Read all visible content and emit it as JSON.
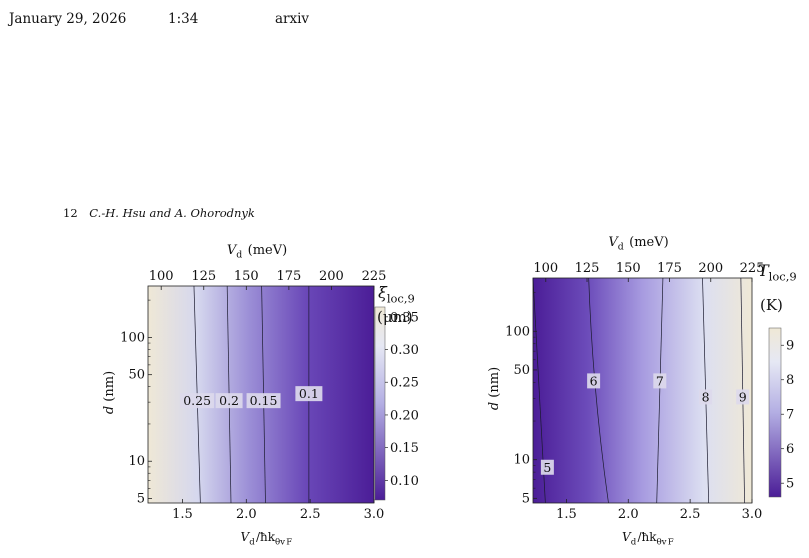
{
  "page_header": {
    "date": "January 29, 2026",
    "time": "1:34",
    "label": "arxiv"
  },
  "running_head": {
    "page_number": "12",
    "authors": "C.-H. Hsu and A. Ohorodnyk"
  },
  "chart_data": [
    {
      "type": "heatmap",
      "top_axis": {
        "label": "V_d (meV)",
        "ticks": [
          "100",
          "125",
          "150",
          "175",
          "200",
          "225"
        ],
        "values": [
          100,
          125,
          150,
          175,
          200,
          225
        ]
      },
      "bottom_axis": {
        "label": "V_d/ħk_θv_F",
        "ticks": [
          "1.5",
          "2.0",
          "2.5",
          "3.0"
        ],
        "values": [
          1.5,
          2.0,
          2.5,
          3.0
        ]
      },
      "y_axis": {
        "label": "d (nm)",
        "scale": "log",
        "ticks": [
          "5",
          "10",
          "50",
          "100"
        ],
        "values": [
          5,
          10,
          50,
          100
        ],
        "range": [
          4.6,
          260
        ]
      },
      "x_range": [
        1.23,
        3.0
      ],
      "colorbar": {
        "title": "ξ_loc,9",
        "unit": "(μm)",
        "ticks": [
          "0.35",
          "0.30",
          "0.25",
          "0.20",
          "0.15",
          "0.10"
        ],
        "values": [
          0.35,
          0.3,
          0.25,
          0.2,
          0.15,
          0.1
        ],
        "range": [
          0.07,
          0.365
        ],
        "colors": [
          "#4b1d97",
          "#ffffff",
          "#efe8d6"
        ]
      },
      "contours": [
        {
          "label": "0.25",
          "x_bottom": 1.64,
          "x_top": 1.59
        },
        {
          "label": "0.2",
          "x_bottom": 1.88,
          "x_top": 1.85
        },
        {
          "label": "0.15",
          "x_bottom": 2.15,
          "x_top": 2.12
        },
        {
          "label": "0.1",
          "x_bottom": 2.49,
          "x_top": 2.49
        }
      ],
      "contour_label_d": 30
    },
    {
      "type": "heatmap",
      "top_axis": {
        "label": "V_d (meV)",
        "ticks": [
          "100",
          "125",
          "150",
          "175",
          "200",
          "225"
        ],
        "values": [
          100,
          125,
          150,
          175,
          200,
          225
        ]
      },
      "bottom_axis": {
        "label": "V_d/ħk_θv_F",
        "ticks": [
          "1.5",
          "2.0",
          "2.5",
          "3.0"
        ],
        "values": [
          1.5,
          2.0,
          2.5,
          3.0
        ]
      },
      "y_axis": {
        "label": "d (nm)",
        "scale": "log",
        "ticks": [
          "5",
          "10",
          "50",
          "100"
        ],
        "values": [
          5,
          10,
          50,
          100
        ],
        "range": [
          4.6,
          260
        ]
      },
      "x_range": [
        1.23,
        3.0
      ],
      "colorbar": {
        "title": "T_loc,9",
        "unit": "(K)",
        "ticks": [
          "9",
          "8",
          "7",
          "6",
          "5"
        ],
        "values": [
          9,
          8,
          7,
          6,
          5
        ],
        "range": [
          4.6,
          9.5
        ],
        "colors": [
          "#4b1d97",
          "#ffffff",
          "#efe8d6"
        ]
      },
      "contours": [
        {
          "label": "5",
          "x_bottom": 1.33,
          "x_top": 1.23
        },
        {
          "label": "6",
          "x_bottom": 1.84,
          "x_top": 1.68
        },
        {
          "label": "7",
          "x_bottom": 2.23,
          "x_top": 2.28
        },
        {
          "label": "8",
          "x_bottom": 2.65,
          "x_top": 2.6
        },
        {
          "label": "9",
          "x_bottom": 2.94,
          "x_top": 2.91
        }
      ],
      "contour_label_d": 30
    }
  ]
}
